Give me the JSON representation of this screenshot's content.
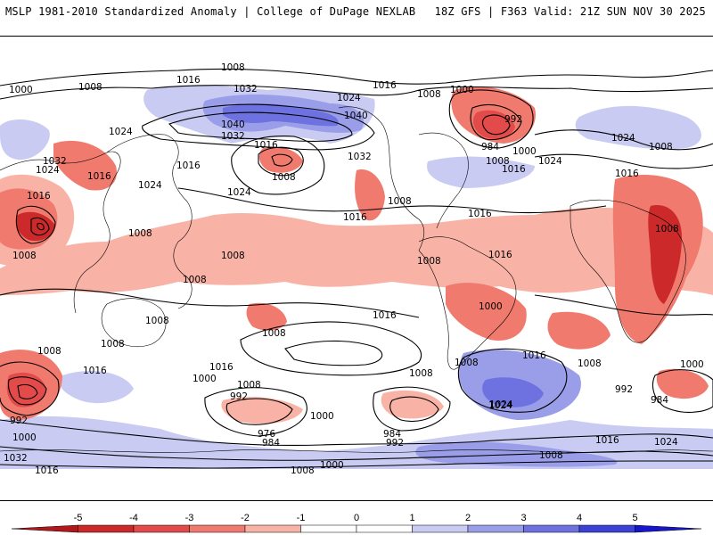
{
  "header": {
    "left": "MSLP 1981-2010 Standardized Anomaly | College of DuPage NEXLAB",
    "right": "18Z GFS | F363 Valid: 21Z SUN NOV 30 2025"
  },
  "colorbar": {
    "ticks": [
      "-5",
      "-4",
      "-3",
      "-2",
      "-1",
      "0",
      "1",
      "2",
      "3",
      "4",
      "5"
    ],
    "colors": [
      "#b2181b",
      "#cc2a2a",
      "#e34a4a",
      "#f07a6e",
      "#f9b3a6",
      "#ffffff",
      "#ffffff",
      "#c9cbf3",
      "#9a9ee8",
      "#6d72e0",
      "#3d42d6",
      "#1616cc"
    ]
  },
  "isobar_labels": [
    "1008",
    "1016",
    "1000",
    "1008",
    "1032",
    "1024",
    "1016",
    "1008",
    "1000",
    "992",
    "1040",
    "1032",
    "1040",
    "1024",
    "1016",
    "1008",
    "984",
    "1000",
    "1008",
    "1016",
    "1024",
    "1024",
    "1032",
    "1024",
    "1016",
    "1024",
    "1016",
    "1032",
    "1008",
    "1016",
    "1024",
    "1016",
    "1008",
    "1016",
    "1008",
    "1016",
    "1008",
    "1008",
    "1008",
    "1008",
    "1016",
    "1008",
    "1008",
    "1008",
    "1016",
    "1008",
    "1008",
    "1016",
    "1000",
    "1008",
    "1016",
    "1008",
    "1000",
    "992",
    "984",
    "1008",
    "1000",
    "1016",
    "1000",
    "1008",
    "1024",
    "976",
    "984",
    "984",
    "992",
    "992",
    "1000",
    "1016",
    "1024",
    "1032",
    "1016",
    "1008",
    "1000",
    "1008",
    "1024",
    "992"
  ]
}
